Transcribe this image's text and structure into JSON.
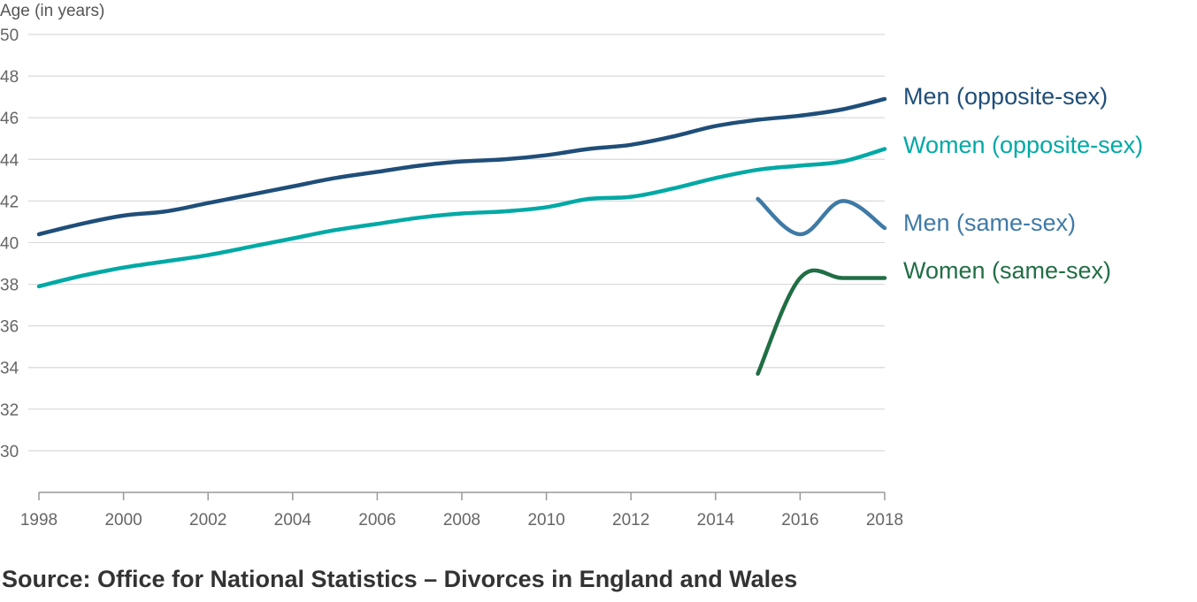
{
  "chart_data": {
    "type": "line",
    "ylabel": "Age (in years)",
    "xlabel": "",
    "xlim": [
      1998,
      2018
    ],
    "ylim": [
      28,
      50
    ],
    "yticks": [
      30,
      32,
      34,
      36,
      38,
      40,
      42,
      44,
      46,
      48,
      50
    ],
    "xticks": [
      1998,
      2000,
      2002,
      2004,
      2006,
      2008,
      2010,
      2012,
      2014,
      2016,
      2018
    ],
    "grid": true,
    "legend": "inline-right",
    "series": [
      {
        "name": "Men (opposite-sex)",
        "color": "#1f4e79",
        "x": [
          1998,
          1999,
          2000,
          2001,
          2002,
          2003,
          2004,
          2005,
          2006,
          2007,
          2008,
          2009,
          2010,
          2011,
          2012,
          2013,
          2014,
          2015,
          2016,
          2017,
          2018
        ],
        "values": [
          40.4,
          40.9,
          41.3,
          41.5,
          41.9,
          42.3,
          42.7,
          43.1,
          43.4,
          43.7,
          43.9,
          44.0,
          44.2,
          44.5,
          44.7,
          45.1,
          45.6,
          45.9,
          46.1,
          46.4,
          46.9
        ]
      },
      {
        "name": "Women (opposite-sex)",
        "color": "#00a9a5",
        "x": [
          1998,
          1999,
          2000,
          2001,
          2002,
          2003,
          2004,
          2005,
          2006,
          2007,
          2008,
          2009,
          2010,
          2011,
          2012,
          2013,
          2014,
          2015,
          2016,
          2017,
          2018
        ],
        "values": [
          37.9,
          38.4,
          38.8,
          39.1,
          39.4,
          39.8,
          40.2,
          40.6,
          40.9,
          41.2,
          41.4,
          41.5,
          41.7,
          42.1,
          42.2,
          42.6,
          43.1,
          43.5,
          43.7,
          43.9,
          44.5
        ]
      },
      {
        "name": "Men (same-sex)",
        "color": "#3f7aa6",
        "x": [
          2015,
          2016,
          2017,
          2018
        ],
        "values": [
          42.1,
          40.4,
          42.0,
          40.7
        ]
      },
      {
        "name": "Women (same-sex)",
        "color": "#216e45",
        "x": [
          2015,
          2016,
          2017,
          2018
        ],
        "values": [
          33.7,
          38.3,
          38.3,
          38.3
        ]
      }
    ]
  },
  "source": "Source: Office for National Statistics – Divorces in England and Wales"
}
